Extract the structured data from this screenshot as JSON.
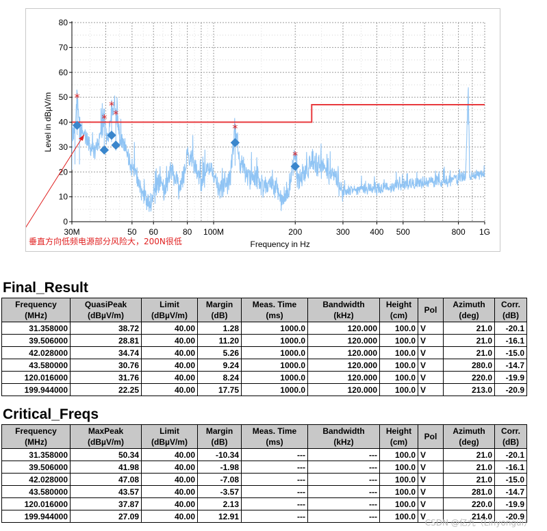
{
  "chart_data": {
    "type": "line",
    "xlabel": "Frequency in Hz",
    "ylabel": "Level in dBµV/m",
    "x_scale": "log",
    "xlim_mhz": [
      30,
      1000
    ],
    "ylim": [
      0,
      80
    ],
    "x_ticks": [
      {
        "mhz": 30,
        "label": "30M"
      },
      {
        "mhz": 50,
        "label": "50"
      },
      {
        "mhz": 60,
        "label": "60"
      },
      {
        "mhz": 80,
        "label": "80"
      },
      {
        "mhz": 100,
        "label": "100M"
      },
      {
        "mhz": 200,
        "label": "200"
      },
      {
        "mhz": 300,
        "label": "300"
      },
      {
        "mhz": 400,
        "label": "400"
      },
      {
        "mhz": 500,
        "label": "500"
      },
      {
        "mhz": 800,
        "label": "800"
      },
      {
        "mhz": 1000,
        "label": "1G"
      }
    ],
    "y_ticks": [
      0,
      10,
      20,
      30,
      40,
      50,
      60,
      70,
      80
    ],
    "grid": true,
    "colors": {
      "spectrum": "#90c4f4",
      "limit": "#e8383c",
      "quasipeak": "#3a86cc",
      "maxpeak": "#e02020",
      "annotation": "#e02020"
    },
    "limit_line": [
      [
        30,
        40
      ],
      [
        230,
        40
      ],
      [
        230,
        47
      ],
      [
        1000,
        47
      ]
    ],
    "quasipeak_markers": [
      [
        31.358,
        38.72
      ],
      [
        39.506,
        28.81
      ],
      [
        42.028,
        34.74
      ],
      [
        43.58,
        30.76
      ],
      [
        120.016,
        31.76
      ],
      [
        199.944,
        22.25
      ]
    ],
    "maxpeak_markers": [
      [
        31.358,
        50.34
      ],
      [
        39.506,
        41.98
      ],
      [
        42.028,
        47.08
      ],
      [
        43.58,
        43.57
      ],
      [
        120.016,
        37.87
      ],
      [
        199.944,
        27.09
      ]
    ],
    "spectrum_anchors": [
      [
        30,
        33
      ],
      [
        30.8,
        38
      ],
      [
        31.358,
        50
      ],
      [
        32,
        38
      ],
      [
        33,
        36
      ],
      [
        35,
        30
      ],
      [
        37,
        28
      ],
      [
        39.506,
        42
      ],
      [
        40.5,
        30
      ],
      [
        42.028,
        47
      ],
      [
        43.58,
        43.5
      ],
      [
        45,
        34
      ],
      [
        48,
        28
      ],
      [
        50,
        22
      ],
      [
        53,
        15
      ],
      [
        56,
        10
      ],
      [
        58,
        7
      ],
      [
        60,
        11
      ],
      [
        63,
        15
      ],
      [
        66,
        12
      ],
      [
        70,
        22
      ],
      [
        75,
        12
      ],
      [
        80,
        26
      ],
      [
        85,
        24
      ],
      [
        90,
        14
      ],
      [
        95,
        22
      ],
      [
        100,
        19
      ],
      [
        105,
        13
      ],
      [
        110,
        15
      ],
      [
        115,
        16
      ],
      [
        120.016,
        37.5
      ],
      [
        125,
        24
      ],
      [
        135,
        18
      ],
      [
        145,
        16
      ],
      [
        155,
        13
      ],
      [
        165,
        16
      ],
      [
        180,
        8
      ],
      [
        190,
        14
      ],
      [
        199.944,
        27
      ],
      [
        205,
        14
      ],
      [
        215,
        20
      ],
      [
        230,
        24
      ],
      [
        250,
        22
      ],
      [
        280,
        18
      ],
      [
        300,
        12
      ],
      [
        350,
        13
      ],
      [
        400,
        13
      ],
      [
        450,
        14
      ],
      [
        500,
        15
      ],
      [
        550,
        15
      ],
      [
        600,
        16
      ],
      [
        700,
        16
      ],
      [
        800,
        17
      ],
      [
        850,
        18
      ],
      [
        870,
        54
      ],
      [
        880,
        18
      ],
      [
        950,
        19
      ],
      [
        1000,
        19.5
      ]
    ],
    "annotation": {
      "text": "垂直方向低频电源部分风险大，200N很低"
    }
  },
  "final_result": {
    "title": "Final_Result",
    "headers": [
      [
        "Frequency",
        "(MHz)"
      ],
      [
        "QuasiPeak",
        "(dBµV/m)"
      ],
      [
        "Limit",
        "(dBµV/m)"
      ],
      [
        "Margin",
        "(dB)"
      ],
      [
        "Meas. Time",
        "(ms)"
      ],
      [
        "Bandwidth",
        "(kHz)"
      ],
      [
        "Height",
        "(cm)"
      ],
      [
        "Pol",
        ""
      ],
      [
        "Azimuth",
        "(deg)"
      ],
      [
        "Corr.",
        "(dB)"
      ]
    ],
    "rows": [
      [
        "31.358000",
        "38.72",
        "40.00",
        "1.28",
        "1000.0",
        "120.000",
        "100.0",
        "V",
        "21.0",
        "-20.1"
      ],
      [
        "39.506000",
        "28.81",
        "40.00",
        "11.20",
        "1000.0",
        "120.000",
        "100.0",
        "V",
        "21.0",
        "-16.1"
      ],
      [
        "42.028000",
        "34.74",
        "40.00",
        "5.26",
        "1000.0",
        "120.000",
        "100.0",
        "V",
        "21.0",
        "-15.0"
      ],
      [
        "43.580000",
        "30.76",
        "40.00",
        "9.24",
        "1000.0",
        "120.000",
        "100.0",
        "V",
        "280.0",
        "-14.7"
      ],
      [
        "120.016000",
        "31.76",
        "40.00",
        "8.24",
        "1000.0",
        "120.000",
        "100.0",
        "V",
        "220.0",
        "-19.9"
      ],
      [
        "199.944000",
        "22.25",
        "40.00",
        "17.75",
        "1000.0",
        "120.000",
        "100.0",
        "V",
        "213.0",
        "-20.9"
      ]
    ]
  },
  "critical_freqs": {
    "title": "Critical_Freqs",
    "headers": [
      [
        "Frequency",
        "(MHz)"
      ],
      [
        "MaxPeak",
        "(dBµV/m)"
      ],
      [
        "Limit",
        "(dBµV/m)"
      ],
      [
        "Margin",
        "(dB)"
      ],
      [
        "Meas. Time",
        "(ms)"
      ],
      [
        "Bandwidth",
        "(kHz)"
      ],
      [
        "Height",
        "(cm)"
      ],
      [
        "Pol",
        ""
      ],
      [
        "Azimuth",
        "(deg)"
      ],
      [
        "Corr.",
        "(dB)"
      ]
    ],
    "rows": [
      [
        "31.358000",
        "50.34",
        "40.00",
        "-10.34",
        "---",
        "---",
        "100.0",
        "V",
        "21.0",
        "-20.1"
      ],
      [
        "39.506000",
        "41.98",
        "40.00",
        "-1.98",
        "---",
        "---",
        "100.0",
        "V",
        "21.0",
        "-16.1"
      ],
      [
        "42.028000",
        "47.08",
        "40.00",
        "-7.08",
        "---",
        "---",
        "100.0",
        "V",
        "21.0",
        "-15.0"
      ],
      [
        "43.580000",
        "43.57",
        "40.00",
        "-3.57",
        "---",
        "---",
        "100.0",
        "V",
        "281.0",
        "-14.7"
      ],
      [
        "120.016000",
        "37.87",
        "40.00",
        "2.13",
        "---",
        "---",
        "100.0",
        "V",
        "220.0",
        "-19.9"
      ],
      [
        "199.944000",
        "27.09",
        "40.00",
        "12.91",
        "---",
        "---",
        "100.0",
        "V",
        "214.0",
        "-20.9"
      ]
    ]
  },
  "watermark": "CSDN @亿九（Linyongui）"
}
